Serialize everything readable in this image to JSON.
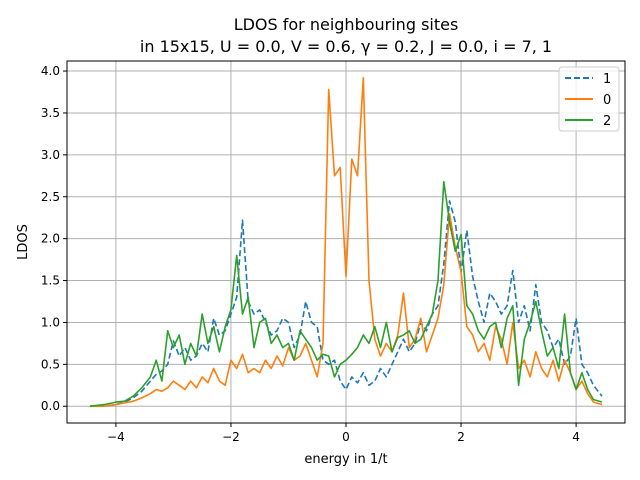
{
  "chart_data": {
    "type": "line",
    "title_line1": "LDOS for neighbouring sites",
    "title_line2": "in 15x15,  U = 0.0, V = 0.6, γ = 0.2, J = 0.0, i = 7, 1",
    "xlabel": "energy in 1/t",
    "ylabel": "LDOS",
    "xlim": [
      -4.85,
      4.85
    ],
    "ylim": [
      -0.2,
      4.12
    ],
    "xticks": [
      -4,
      -2,
      0,
      2,
      4
    ],
    "xtick_labels": [
      "−4",
      "−2",
      "0",
      "2",
      "4"
    ],
    "yticks": [
      0.0,
      0.5,
      1.0,
      1.5,
      2.0,
      2.5,
      3.0,
      3.5,
      4.0
    ],
    "ytick_labels": [
      "0.0",
      "0.5",
      "1.0",
      "1.5",
      "2.0",
      "2.5",
      "3.0",
      "3.5",
      "4.0"
    ],
    "grid": true,
    "legend_position": "top-right",
    "series": [
      {
        "name": "1",
        "color": "#1f77b4",
        "dashed": true,
        "x": [
          -4.45,
          -4.2,
          -4.0,
          -3.85,
          -3.7,
          -3.55,
          -3.4,
          -3.3,
          -3.2,
          -3.1,
          -3.0,
          -2.9,
          -2.8,
          -2.7,
          -2.6,
          -2.5,
          -2.4,
          -2.3,
          -2.2,
          -2.1,
          -2.0,
          -1.9,
          -1.8,
          -1.7,
          -1.6,
          -1.5,
          -1.4,
          -1.3,
          -1.2,
          -1.1,
          -1.0,
          -0.9,
          -0.8,
          -0.7,
          -0.6,
          -0.5,
          -0.4,
          -0.3,
          -0.2,
          -0.1,
          0.0,
          0.1,
          0.2,
          0.3,
          0.4,
          0.5,
          0.6,
          0.7,
          0.8,
          0.9,
          1.0,
          1.1,
          1.2,
          1.3,
          1.4,
          1.5,
          1.6,
          1.7,
          1.8,
          1.9,
          2.0,
          2.1,
          2.2,
          2.3,
          2.4,
          2.5,
          2.6,
          2.7,
          2.8,
          2.9,
          3.0,
          3.1,
          3.2,
          3.3,
          3.4,
          3.5,
          3.6,
          3.7,
          3.8,
          3.9,
          4.0,
          4.1,
          4.2,
          4.3,
          4.45
        ],
        "y": [
          0.0,
          0.0,
          0.02,
          0.05,
          0.1,
          0.18,
          0.3,
          0.38,
          0.42,
          0.5,
          0.78,
          0.6,
          0.7,
          0.55,
          0.6,
          0.75,
          0.65,
          1.05,
          0.85,
          0.9,
          1.1,
          1.3,
          2.22,
          1.25,
          1.1,
          1.15,
          1.0,
          0.85,
          0.9,
          1.05,
          1.0,
          0.7,
          0.85,
          1.25,
          1.0,
          0.95,
          0.55,
          0.5,
          0.55,
          0.3,
          0.2,
          0.35,
          0.28,
          0.4,
          0.25,
          0.3,
          0.45,
          0.35,
          0.5,
          0.65,
          0.8,
          0.65,
          0.75,
          1.0,
          0.9,
          1.1,
          1.2,
          1.7,
          2.45,
          2.2,
          1.6,
          2.1,
          1.55,
          1.25,
          1.0,
          1.35,
          1.25,
          1.1,
          1.2,
          1.62,
          1.0,
          1.2,
          0.9,
          1.45,
          1.0,
          0.9,
          0.7,
          0.8,
          0.5,
          0.6,
          1.05,
          0.5,
          0.4,
          0.25,
          0.12
        ]
      },
      {
        "name": "0",
        "color": "#ff7f0e",
        "dashed": false,
        "x": [
          -4.45,
          -4.2,
          -4.0,
          -3.85,
          -3.7,
          -3.55,
          -3.4,
          -3.3,
          -3.2,
          -3.1,
          -3.0,
          -2.9,
          -2.8,
          -2.7,
          -2.6,
          -2.5,
          -2.4,
          -2.3,
          -2.2,
          -2.1,
          -2.0,
          -1.9,
          -1.8,
          -1.7,
          -1.6,
          -1.5,
          -1.4,
          -1.3,
          -1.2,
          -1.1,
          -1.0,
          -0.9,
          -0.8,
          -0.7,
          -0.6,
          -0.5,
          -0.4,
          -0.3,
          -0.2,
          -0.1,
          0.0,
          0.1,
          0.2,
          0.3,
          0.4,
          0.5,
          0.6,
          0.7,
          0.8,
          0.9,
          1.0,
          1.1,
          1.2,
          1.3,
          1.4,
          1.5,
          1.6,
          1.7,
          1.8,
          1.9,
          2.0,
          2.1,
          2.2,
          2.3,
          2.4,
          2.5,
          2.6,
          2.7,
          2.8,
          2.9,
          3.0,
          3.1,
          3.2,
          3.3,
          3.4,
          3.5,
          3.6,
          3.7,
          3.8,
          3.9,
          4.0,
          4.1,
          4.2,
          4.3,
          4.45
        ],
        "y": [
          0.0,
          0.0,
          0.02,
          0.04,
          0.06,
          0.1,
          0.15,
          0.2,
          0.18,
          0.22,
          0.3,
          0.25,
          0.2,
          0.3,
          0.22,
          0.35,
          0.28,
          0.45,
          0.3,
          0.25,
          0.55,
          0.45,
          0.62,
          0.4,
          0.45,
          0.4,
          0.55,
          0.45,
          0.6,
          0.48,
          0.7,
          0.55,
          0.6,
          0.75,
          0.55,
          0.35,
          0.75,
          3.78,
          2.75,
          2.85,
          1.55,
          2.95,
          2.75,
          3.92,
          1.5,
          0.8,
          0.6,
          0.75,
          0.65,
          0.85,
          1.35,
          0.7,
          0.8,
          1.05,
          0.65,
          0.85,
          1.05,
          1.45,
          2.3,
          1.9,
          1.6,
          0.95,
          0.85,
          0.65,
          0.75,
          0.55,
          0.95,
          0.8,
          0.5,
          1.0,
          0.45,
          0.55,
          0.35,
          0.65,
          0.45,
          0.35,
          0.55,
          0.3,
          0.55,
          0.4,
          0.2,
          0.3,
          0.15,
          0.05,
          0.02
        ]
      },
      {
        "name": "2",
        "color": "#2ca02c",
        "dashed": false,
        "x": [
          -4.45,
          -4.2,
          -4.0,
          -3.85,
          -3.7,
          -3.55,
          -3.4,
          -3.3,
          -3.2,
          -3.1,
          -3.0,
          -2.9,
          -2.8,
          -2.7,
          -2.6,
          -2.5,
          -2.4,
          -2.3,
          -2.2,
          -2.1,
          -2.0,
          -1.9,
          -1.8,
          -1.7,
          -1.6,
          -1.5,
          -1.4,
          -1.3,
          -1.2,
          -1.1,
          -1.0,
          -0.9,
          -0.8,
          -0.7,
          -0.6,
          -0.5,
          -0.4,
          -0.3,
          -0.2,
          -0.1,
          0.0,
          0.1,
          0.2,
          0.3,
          0.4,
          0.5,
          0.6,
          0.7,
          0.8,
          0.9,
          1.0,
          1.1,
          1.2,
          1.3,
          1.4,
          1.5,
          1.6,
          1.7,
          1.8,
          1.9,
          2.0,
          2.1,
          2.2,
          2.3,
          2.4,
          2.5,
          2.6,
          2.7,
          2.8,
          2.9,
          3.0,
          3.1,
          3.2,
          3.3,
          3.4,
          3.5,
          3.6,
          3.7,
          3.8,
          3.9,
          4.0,
          4.1,
          4.2,
          4.3,
          4.45
        ],
        "y": [
          0.0,
          0.02,
          0.05,
          0.06,
          0.12,
          0.22,
          0.35,
          0.55,
          0.3,
          0.9,
          0.7,
          0.85,
          0.5,
          0.75,
          0.6,
          1.1,
          0.75,
          0.95,
          0.65,
          0.95,
          1.15,
          1.8,
          1.1,
          1.3,
          0.7,
          1.0,
          1.05,
          0.75,
          0.85,
          0.7,
          0.75,
          0.55,
          0.9,
          0.8,
          0.7,
          0.55,
          0.62,
          0.6,
          0.35,
          0.5,
          0.55,
          0.62,
          0.7,
          0.85,
          0.75,
          0.95,
          0.7,
          1.0,
          0.65,
          0.82,
          0.85,
          0.9,
          0.75,
          0.8,
          0.95,
          1.1,
          1.5,
          2.68,
          2.2,
          1.85,
          2.05,
          1.2,
          1.1,
          0.9,
          0.8,
          0.95,
          1.0,
          0.7,
          1.05,
          1.2,
          0.25,
          0.8,
          1.0,
          1.25,
          0.9,
          0.6,
          0.7,
          0.45,
          1.1,
          0.4,
          0.2,
          0.4,
          0.2,
          0.08,
          0.05
        ]
      }
    ]
  }
}
